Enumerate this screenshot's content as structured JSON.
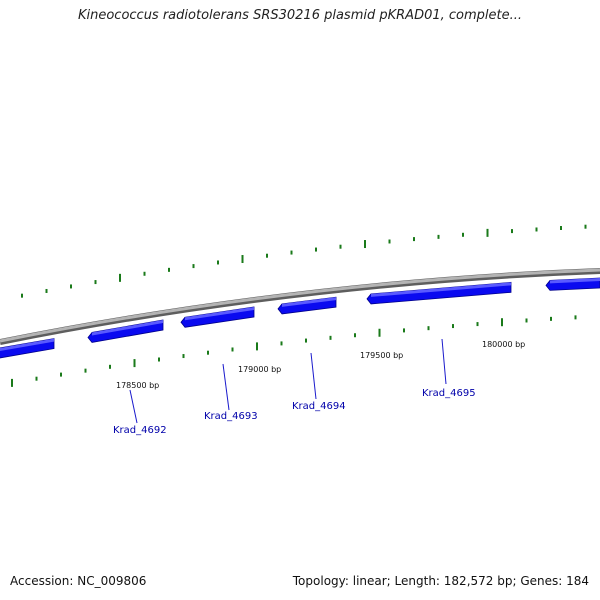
{
  "title": "Kineococcus radiotolerans SRS30216 plasmid pKRAD01, complete...",
  "footer": {
    "accession": "Accession: NC_009806",
    "summary": "Topology: linear; Length: 182,572 bp; Genes: 184"
  },
  "colors": {
    "backbone": "#8c8c8c",
    "gene_fill": "#0a0af0",
    "gene_highlight": "#5a5aff",
    "gene_shadow": "#00008a",
    "gc_tick": "#1a7a1a",
    "gene_label": "#0000aa"
  },
  "scale_labels": [
    "178500 bp",
    "179000 bp",
    "179500 bp",
    "180000 bp"
  ],
  "gene_labels": [
    "Krad_4692",
    "Krad_4693",
    "Krad_4694",
    "Krad_4695"
  ]
}
